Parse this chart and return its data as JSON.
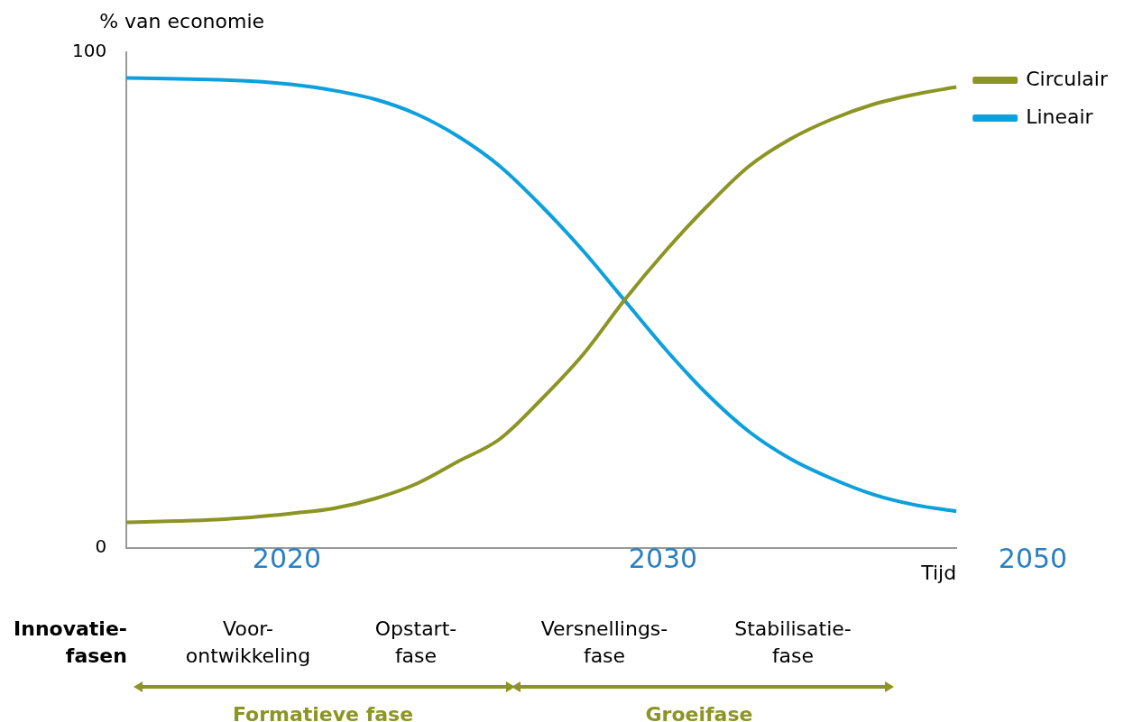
{
  "chart_data": {
    "type": "line",
    "ylabel": "% van economie",
    "xlabel": "Tijd",
    "categories": [
      null,
      null,
      null,
      null,
      null,
      null,
      null,
      null,
      null,
      null,
      null,
      null,
      null,
      null,
      null,
      null,
      null,
      null,
      null,
      null,
      null
    ],
    "series": [
      {
        "name": "Circulair",
        "color": "#8c9524",
        "values": [
          5.2,
          5.4,
          5.7,
          6.2,
          7,
          8,
          10,
          13,
          17.5,
          22,
          30,
          39,
          50,
          60,
          69,
          77,
          82.5,
          86.5,
          89.5,
          91.5,
          93
        ]
      },
      {
        "name": "Lineair",
        "color": "#0ca0dc",
        "values": [
          94.8,
          94.7,
          94.5,
          94.2,
          93.5,
          92.3,
          90.5,
          87.5,
          83,
          77,
          69,
          60,
          50,
          40,
          31,
          23.5,
          18,
          14,
          10.8,
          8.7,
          7.4
        ]
      }
    ],
    "ylim": [
      0,
      100
    ],
    "yticks": [
      0,
      100
    ],
    "grid": false,
    "legend": "top right",
    "marker": "none",
    "line_style": "solid",
    "annotations": [
      "2020",
      "2030",
      "2050",
      "Innovatie-\nfasen",
      "Voor-\nontwikkeling",
      "Opstart-\nfase",
      "Versnellings-\nfase",
      "Stabilisatie-\nfase",
      "Formatieve fase",
      "Groeifase"
    ]
  }
}
